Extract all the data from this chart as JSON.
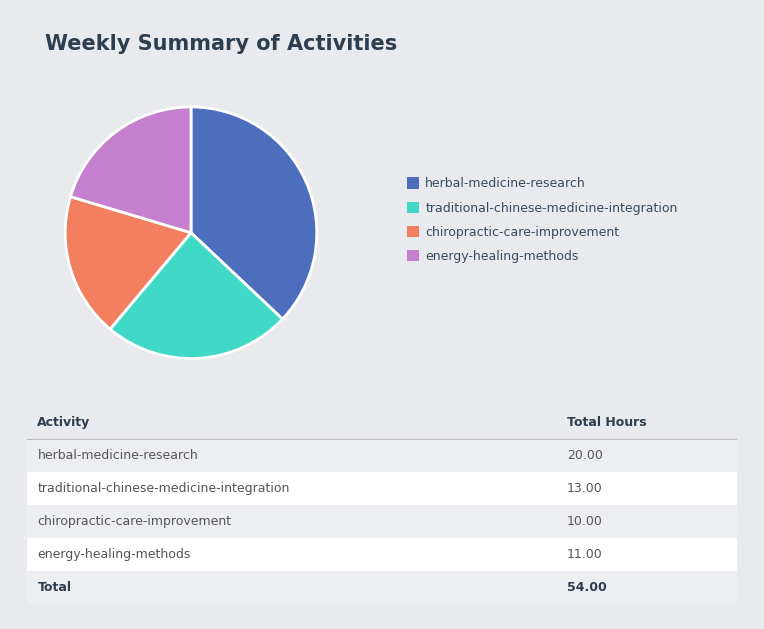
{
  "title": "Weekly Summary of Activities",
  "activities": [
    "herbal-medicine-research",
    "traditional-chinese-medicine-integration",
    "chiropractic-care-improvement",
    "energy-healing-methods"
  ],
  "hours": [
    20.0,
    13.0,
    10.0,
    11.0
  ],
  "total": 54.0,
  "colors": [
    "#4C6EBC",
    "#40D9C8",
    "#F28060",
    "#C47FCE"
  ],
  "bg_color": "#e8eaed",
  "card_color": "#ffffff",
  "title_color": "#2d3e50",
  "table_header_color": "#2d3e50",
  "table_text_color": "#555555",
  "table_row_odd_color": "#edeef2",
  "table_row_even_color": "#ffffff",
  "legend_text_color": "#3a4a5c",
  "title_fontsize": 15,
  "legend_fontsize": 9,
  "table_fontsize": 9,
  "table_header_fontsize": 9
}
